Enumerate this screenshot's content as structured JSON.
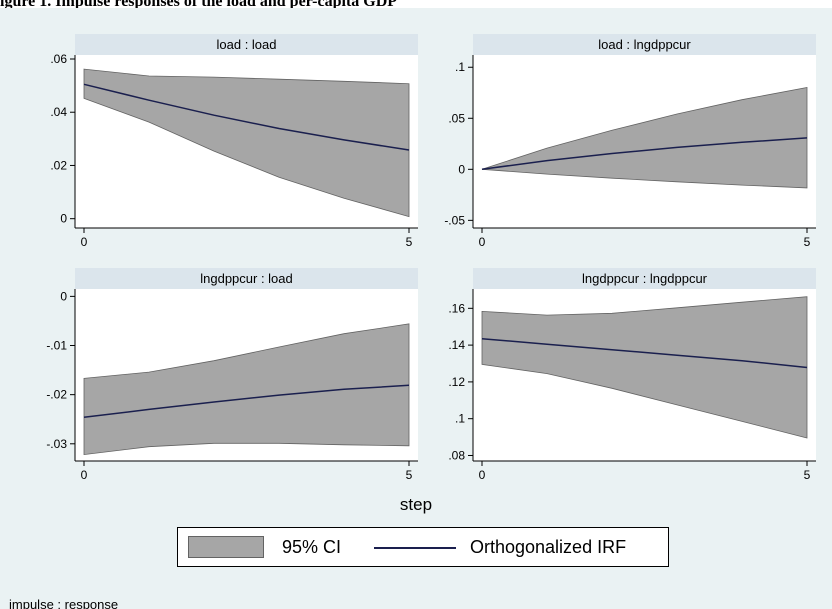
{
  "caption": "igure 1. Impulse responses of the load and per-capita GDP",
  "chart_data": {
    "type": "area",
    "xlabel": "step",
    "note": "impulse : response",
    "legend": {
      "position": "bottom",
      "ci_label": "95% CI",
      "irf_label": "Orthogonalized IRF"
    },
    "colors": {
      "ci_fill": "#a6a6a6",
      "ci_edge": "#636363",
      "irf_line": "#1a1f4e",
      "panel_header": "#dbe5ec",
      "background": "#eaf2f3"
    },
    "panels": [
      {
        "title": "load : load",
        "x": [
          0,
          1,
          2,
          3,
          4,
          5
        ],
        "irf": [
          0.0505,
          0.0445,
          0.0389,
          0.0339,
          0.0296,
          0.0258
        ],
        "ci_lower": [
          0.0452,
          0.0363,
          0.0254,
          0.0156,
          0.0077,
          0.0008
        ],
        "ci_upper": [
          0.0562,
          0.0536,
          0.0532,
          0.0524,
          0.0516,
          0.0507
        ],
        "xlim": [
          0,
          5
        ],
        "ylim": [
          -0.0035,
          0.0615
        ],
        "xticks": [
          0,
          5
        ],
        "xtick_labels": [
          "0",
          "5"
        ],
        "yticks": [
          0,
          0.02,
          0.04,
          0.06
        ],
        "ytick_labels": [
          "0",
          ".02",
          ".04",
          ".06"
        ]
      },
      {
        "title": "load : lngdppcur",
        "x": [
          0,
          1,
          2,
          3,
          4,
          5
        ],
        "irf": [
          0.0,
          0.0085,
          0.0155,
          0.0215,
          0.0265,
          0.0308
        ],
        "ci_lower": [
          0.0,
          -0.0047,
          -0.0087,
          -0.0122,
          -0.0155,
          -0.0182
        ],
        "ci_upper": [
          0.0,
          0.0208,
          0.0382,
          0.0542,
          0.0682,
          0.0802
        ],
        "xlim": [
          0,
          5
        ],
        "ylim": [
          -0.0575,
          0.112
        ],
        "xticks": [
          0,
          5
        ],
        "xtick_labels": [
          "0",
          "5"
        ],
        "yticks": [
          -0.05,
          0,
          0.05,
          0.1
        ],
        "ytick_labels": [
          "-.05",
          "0",
          ".05",
          ".1"
        ]
      },
      {
        "title": "lngdppcur : load",
        "x": [
          0,
          1,
          2,
          3,
          4,
          5
        ],
        "irf": [
          -0.0246,
          -0.023,
          -0.0215,
          -0.0201,
          -0.0189,
          -0.0181
        ],
        "ci_lower": [
          -0.0322,
          -0.0306,
          -0.0299,
          -0.0299,
          -0.0302,
          -0.0304
        ],
        "ci_upper": [
          -0.0167,
          -0.0154,
          -0.0131,
          -0.0103,
          -0.0076,
          -0.0056
        ],
        "xlim": [
          0,
          5
        ],
        "ylim": [
          -0.0335,
          0.0015
        ],
        "xticks": [
          0,
          5
        ],
        "xtick_labels": [
          "0",
          "5"
        ],
        "yticks": [
          -0.03,
          -0.02,
          -0.01,
          0
        ],
        "ytick_labels": [
          "-.03",
          "-.02",
          "-.01",
          "0"
        ]
      },
      {
        "title": "lngdppcur : lngdppcur",
        "x": [
          0,
          1,
          2,
          3,
          4,
          5
        ],
        "irf": [
          0.1435,
          0.1405,
          0.1375,
          0.1345,
          0.1315,
          0.1278
        ],
        "ci_lower": [
          0.1295,
          0.1245,
          0.1165,
          0.1075,
          0.0985,
          0.0895
        ],
        "ci_upper": [
          0.1583,
          0.1563,
          0.1573,
          0.1603,
          0.1633,
          0.1663
        ],
        "xlim": [
          0,
          5
        ],
        "ylim": [
          0.077,
          0.1705
        ],
        "xticks": [
          0,
          5
        ],
        "xtick_labels": [
          "0",
          "5"
        ],
        "yticks": [
          0.08,
          0.1,
          0.12,
          0.14,
          0.16
        ],
        "ytick_labels": [
          ".08",
          ".1",
          ".12",
          ".14",
          ".16"
        ]
      }
    ]
  }
}
